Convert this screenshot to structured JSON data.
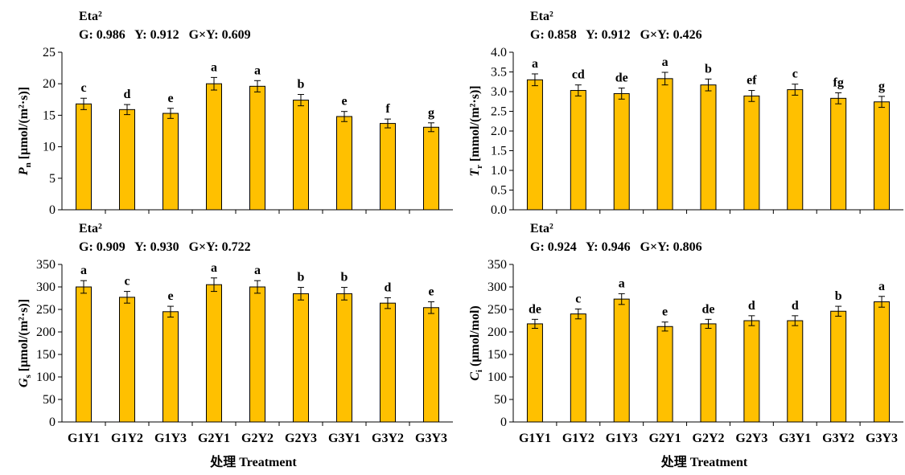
{
  "xlabel": "处理 Treatment",
  "colors": {
    "bar": "#ffc000",
    "bar_edge": "#000000",
    "axis": "#000000"
  },
  "chart_data": [
    {
      "type": "bar",
      "panel": "top-left",
      "categories": [
        "G1Y1",
        "G1Y2",
        "G1Y3",
        "G2Y1",
        "G2Y2",
        "G2Y3",
        "G3Y1",
        "G3Y2",
        "G3Y3"
      ],
      "values": [
        16.8,
        15.9,
        15.3,
        20.0,
        19.6,
        17.4,
        14.8,
        13.7,
        13.1
      ],
      "errors": [
        0.9,
        0.8,
        0.8,
        1.0,
        0.9,
        0.9,
        0.8,
        0.7,
        0.7
      ],
      "significance": [
        "c",
        "d",
        "e",
        "a",
        "a",
        "b",
        "e",
        "f",
        "g"
      ],
      "ylim": [
        0,
        25
      ],
      "yticks": [
        "0",
        "5",
        "10",
        "15",
        "20",
        "25"
      ],
      "ylabel_main": "P",
      "ylabel_sub": "n",
      "ylabel_rest": " [μmol/(m²·s)]",
      "eta_title": "Eta²",
      "eta_stats": "G: 0.986   Y: 0.912   G×Y: 0.609",
      "show_xticklabels": false,
      "show_xlabel": false
    },
    {
      "type": "bar",
      "panel": "top-right",
      "categories": [
        "G1Y1",
        "G1Y2",
        "G1Y3",
        "G2Y1",
        "G2Y2",
        "G2Y3",
        "G3Y1",
        "G3Y2",
        "G3Y3"
      ],
      "values": [
        3.3,
        3.03,
        2.95,
        3.33,
        3.17,
        2.89,
        3.05,
        2.83,
        2.74
      ],
      "errors": [
        0.15,
        0.14,
        0.14,
        0.16,
        0.15,
        0.14,
        0.14,
        0.14,
        0.14
      ],
      "significance": [
        "a",
        "cd",
        "de",
        "a",
        "b",
        "ef",
        "c",
        "fg",
        "g"
      ],
      "ylim": [
        0,
        4
      ],
      "yticks": [
        "0.0",
        "0.5",
        "1.0",
        "1.5",
        "2.0",
        "2.5",
        "3.0",
        "3.5",
        "4.0"
      ],
      "ylabel_main": "T",
      "ylabel_sub": "r",
      "ylabel_rest": " [mmol/(m²·s)]",
      "eta_title": "Eta²",
      "eta_stats": "G: 0.858   Y: 0.912   G×Y: 0.426",
      "show_xticklabels": false,
      "show_xlabel": false
    },
    {
      "type": "bar",
      "panel": "bottom-left",
      "categories": [
        "G1Y1",
        "G1Y2",
        "G1Y3",
        "G2Y1",
        "G2Y2",
        "G2Y3",
        "G3Y1",
        "G3Y2",
        "G3Y3"
      ],
      "values": [
        300,
        277,
        245,
        305,
        300,
        285,
        285,
        264,
        254
      ],
      "errors": [
        14,
        13,
        12,
        15,
        14,
        14,
        14,
        12,
        13
      ],
      "significance": [
        "a",
        "c",
        "e",
        "a",
        "a",
        "b",
        "b",
        "d",
        "e"
      ],
      "ylim": [
        0,
        350
      ],
      "yticks": [
        "0",
        "50",
        "100",
        "150",
        "200",
        "250",
        "300",
        "350"
      ],
      "ylabel_main": "G",
      "ylabel_sub": "s",
      "ylabel_rest": " [μmol/(m²·s)]",
      "eta_title": "Eta²",
      "eta_stats": "G: 0.909   Y: 0.930   G×Y: 0.722",
      "show_xticklabels": true,
      "show_xlabel": true
    },
    {
      "type": "bar",
      "panel": "bottom-right",
      "categories": [
        "G1Y1",
        "G1Y2",
        "G1Y3",
        "G2Y1",
        "G2Y2",
        "G2Y3",
        "G3Y1",
        "G3Y2",
        "G3Y3"
      ],
      "values": [
        218,
        240,
        273,
        212,
        218,
        225,
        225,
        246,
        267
      ],
      "errors": [
        10,
        11,
        12,
        10,
        10,
        11,
        11,
        11,
        12
      ],
      "significance": [
        "de",
        "c",
        "a",
        "e",
        "de",
        "d",
        "d",
        "b",
        "a"
      ],
      "ylim": [
        0,
        350
      ],
      "yticks": [
        "0",
        "50",
        "100",
        "150",
        "200",
        "250",
        "300",
        "350"
      ],
      "ylabel_main": "C",
      "ylabel_sub": "i",
      "ylabel_rest": " (μmol/mol)",
      "eta_title": "Eta²",
      "eta_stats": "G: 0.924   Y: 0.946   G×Y: 0.806",
      "show_xticklabels": true,
      "show_xlabel": true
    }
  ]
}
